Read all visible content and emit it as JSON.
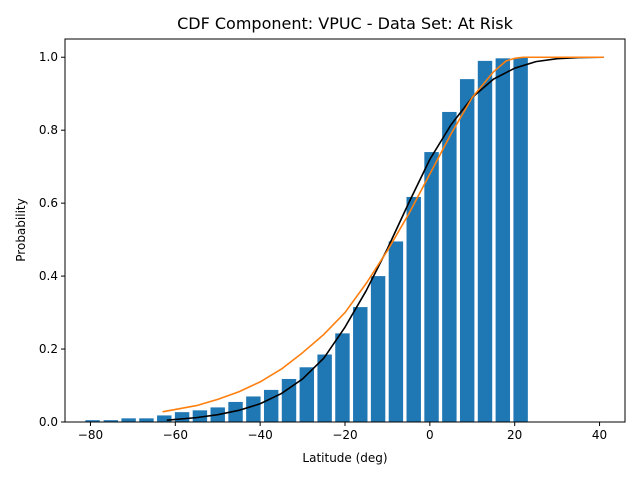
{
  "chart_data": {
    "type": "bar",
    "title": "CDF Component: VPUC - Data Set: At Risk",
    "xlabel": "Latitude (deg)",
    "ylabel": "Probability",
    "xlim": [
      -86,
      46
    ],
    "ylim": [
      0,
      1.05
    ],
    "xticks": [
      -80,
      -60,
      -40,
      -20,
      0,
      20,
      40
    ],
    "yticks": [
      0.0,
      0.2,
      0.4,
      0.6,
      0.8,
      1.0
    ],
    "ytick_labels": [
      "0.0",
      "0.2",
      "0.4",
      "0.6",
      "0.8",
      "1.0"
    ],
    "bar_width": 3.4,
    "bar_color": "#1f77b4",
    "grid": false,
    "bars": {
      "x": [
        -79.5,
        -75.2,
        -71.0,
        -66.8,
        -62.6,
        -58.4,
        -54.2,
        -50.0,
        -45.8,
        -41.6,
        -37.4,
        -33.2,
        -29.0,
        -24.8,
        -20.6,
        -16.4,
        -12.2,
        -8.0,
        -3.8,
        0.4,
        4.6,
        8.8,
        13.0,
        17.2,
        21.4
      ],
      "values": [
        0.005,
        0.005,
        0.01,
        0.01,
        0.018,
        0.027,
        0.032,
        0.04,
        0.055,
        0.07,
        0.088,
        0.118,
        0.15,
        0.185,
        0.243,
        0.315,
        0.4,
        0.495,
        0.617,
        0.74,
        0.85,
        0.94,
        0.99,
        0.997,
        0.998
      ]
    },
    "series": [
      {
        "kind": "line",
        "color": "#000000",
        "x": [
          -62,
          -55,
          -50,
          -45,
          -40,
          -35,
          -30,
          -25,
          -20,
          -15,
          -10,
          -5,
          0,
          5,
          10,
          15,
          20,
          25,
          30,
          35,
          41
        ],
        "y": [
          0.005,
          0.012,
          0.02,
          0.032,
          0.05,
          0.078,
          0.118,
          0.175,
          0.26,
          0.36,
          0.475,
          0.6,
          0.72,
          0.815,
          0.89,
          0.94,
          0.97,
          0.988,
          0.996,
          0.999,
          1.0
        ]
      },
      {
        "kind": "line",
        "color": "#ff7f0e",
        "x": [
          -63,
          -55,
          -50,
          -45,
          -40,
          -35,
          -30,
          -25,
          -20,
          -15,
          -10,
          -5,
          0,
          5,
          10,
          15,
          18,
          20,
          22,
          25,
          30,
          41
        ],
        "y": [
          0.028,
          0.045,
          0.062,
          0.083,
          0.11,
          0.145,
          0.19,
          0.24,
          0.3,
          0.38,
          0.47,
          0.57,
          0.68,
          0.79,
          0.89,
          0.96,
          0.99,
          0.997,
          1.0,
          1.0,
          1.0,
          1.0
        ]
      }
    ]
  }
}
